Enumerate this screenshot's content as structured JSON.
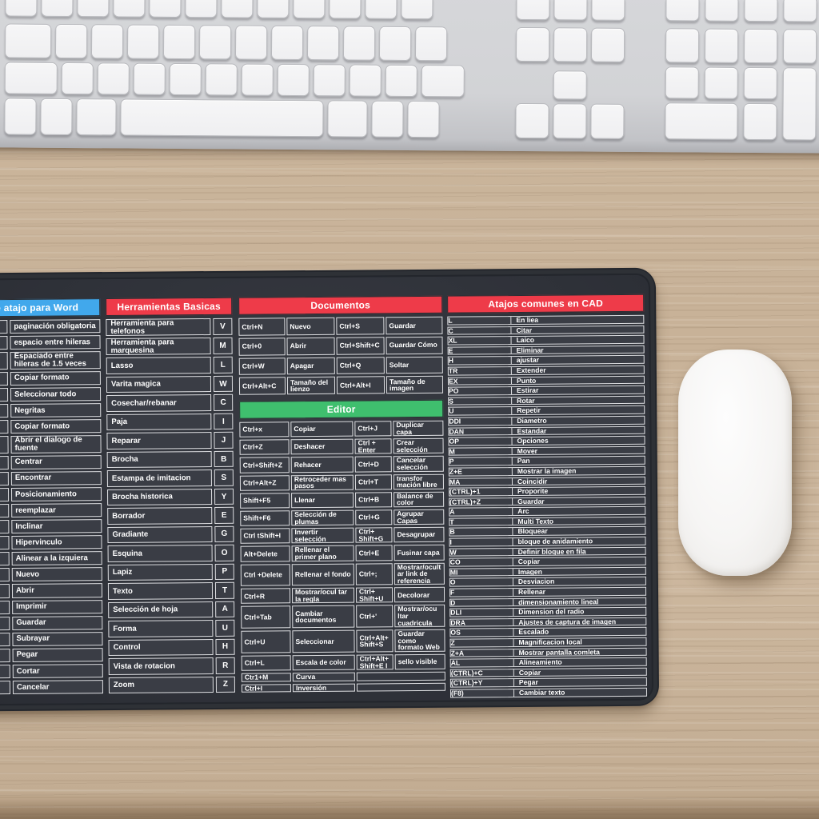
{
  "mousepad": {
    "colors": {
      "header_red": "#ee3b49",
      "header_blue": "#41a8ec",
      "header_green": "#3fbf6e",
      "pad_background": "#30333b",
      "cell_background": "#3a3d45",
      "cell_border": "#dcdde0",
      "text": "#ffffff"
    },
    "word_column": {
      "title": "e atajo para Word",
      "rows": [
        "paginación obligatoria",
        "espacio entre hileras",
        "Espaciado entre hileras de 1.5 veces",
        "Copiar formato",
        "Seleccionar todo",
        "Negritas",
        "Copiar formato",
        "Abrir el dialogo de fuente",
        "Centrar",
        "Encontrar",
        "Posicionamiento",
        "reemplazar",
        "Inclinar",
        "Hipervinculo",
        "Alinear a la izquiera",
        "Nuevo",
        "Abrir",
        "Imprimir",
        "Guardar",
        "Subrayar",
        "Pegar",
        "Cortar",
        "Cancelar"
      ]
    },
    "basic_tools": {
      "title": "Herramientas Basicas",
      "rows": [
        {
          "name": "Herramienta para telefonos",
          "key": "V"
        },
        {
          "name": "Herramienta para marquesina",
          "key": "M"
        },
        {
          "name": "Lasso",
          "key": "L"
        },
        {
          "name": "Varita magica",
          "key": "W"
        },
        {
          "name": "Cosechar/rebanar",
          "key": "C"
        },
        {
          "name": "Paja",
          "key": "I"
        },
        {
          "name": "Reparar",
          "key": "J"
        },
        {
          "name": "Brocha",
          "key": "B"
        },
        {
          "name": "Estampa de imitacion",
          "key": "S"
        },
        {
          "name": "Brocha historica",
          "key": "Y"
        },
        {
          "name": "Borrador",
          "key": "E"
        },
        {
          "name": "Gradiante",
          "key": "G"
        },
        {
          "name": "Esquina",
          "key": "O"
        },
        {
          "name": "Lapiz",
          "key": "P"
        },
        {
          "name": "Texto",
          "key": "T"
        },
        {
          "name": "Selección de hoja",
          "key": "A"
        },
        {
          "name": "Forma",
          "key": "U"
        },
        {
          "name": "Control",
          "key": "H"
        },
        {
          "name": "Vista de rotacion",
          "key": "R"
        },
        {
          "name": "Zoom",
          "key": "Z"
        }
      ]
    },
    "documents": {
      "title": "Documentos",
      "rows": [
        [
          "Ctrl+N",
          "Nuevo",
          "Ctrl+S",
          "Guardar"
        ],
        [
          "Ctrl+0",
          "Abrir",
          "Ctrl+Shift+C",
          "Guardar Cómo"
        ],
        [
          "Ctrl+W",
          "Apagar",
          "Ctrl+Q",
          "Soltar"
        ],
        [
          "Ctrl+Alt+C",
          "Tamaño del lienzo",
          "Ctrl+Alt+I",
          "Tamaño de imagen"
        ]
      ]
    },
    "editor": {
      "title": "Editor",
      "rows": [
        [
          "Ctrl+x",
          "Copiar",
          "Ctrl+J",
          "Duplicar capa"
        ],
        [
          "Ctrl+Z",
          "Deshacer",
          "Ctrl + Enter",
          "Crear selección"
        ],
        [
          "Ctrl+Shift+Z",
          "Rehacer",
          "Ctrl+D",
          "Cancelar selección"
        ],
        [
          "Ctrl+Alt+Z",
          "Retroceder mas pasos",
          "Ctrl+T",
          "transfor mación libre"
        ],
        [
          "Shift+F5",
          "Llenar",
          "Ctrl+B",
          "Balance de color"
        ],
        [
          "Shift+F6",
          "Selección de plumas",
          "Ctrl+G",
          "Agrupar Capas"
        ],
        [
          "Ctrl tShift+I",
          "Invertir selección",
          "Ctrl+ Shift+G",
          "Desagrupar"
        ],
        [
          "Alt+Delete",
          "Rellenar el primer plano",
          "Ctrl+E",
          "Fusinar capa"
        ],
        [
          "Ctrl +Delete",
          "Rellenar el fondo",
          "Ctrl+;",
          "Mostrar/ocultar link de referencia"
        ],
        [
          "Ctrl+R",
          "Mostrar/ocul tar la regla",
          "Ctrl+ Shift+U",
          "Decolorar"
        ],
        [
          "Ctrl+Tab",
          "Cambiar documentos",
          "Ctrl+'",
          "Mostrar/ocu ltar cuadricula"
        ],
        [
          "Ctrl+U",
          "Seleccionar",
          "Ctrl+Alt+ Shift+S",
          "Guardar como formato Web"
        ],
        [
          "Ctrl+L",
          "Escala de color",
          "Ctrl+Alt+ Shift+E I",
          "sello visible"
        ],
        [
          "Ctr1+M",
          "Curva",
          "",
          ""
        ],
        [
          "Ctrl+I",
          "Inversión",
          "",
          ""
        ]
      ]
    },
    "cad": {
      "title": "Atajos comunes en CAD",
      "rows": [
        [
          "L",
          "En liea"
        ],
        [
          "C",
          "Citar"
        ],
        [
          "XL",
          "Laico"
        ],
        [
          "E",
          "Eliminar"
        ],
        [
          "H",
          "ajustar"
        ],
        [
          "TR",
          "Extender"
        ],
        [
          "EX",
          "Punto"
        ],
        [
          "PO",
          "Estirar"
        ],
        [
          "S",
          "Rotar"
        ],
        [
          "U",
          "Repetir"
        ],
        [
          "DDI",
          "Diametro"
        ],
        [
          "DAN",
          "Estandar"
        ],
        [
          "OP",
          "Opciones"
        ],
        [
          "M",
          "Mover"
        ],
        [
          "P",
          "Pan"
        ],
        [
          "Z+E",
          "Mostrar la imagen"
        ],
        [
          "MA",
          "Coincidir"
        ],
        [
          "(CTRL)+1",
          "Proporite"
        ],
        [
          "(CTRL)+Z",
          "Guardar"
        ],
        [
          "A",
          "Arc"
        ],
        [
          "T",
          "Multi Texto"
        ],
        [
          "B",
          "Bloquear"
        ],
        [
          "I",
          "bloque de anidamiento"
        ],
        [
          "W",
          "Definir bloque en fila"
        ],
        [
          "CO",
          "Copiar"
        ],
        [
          "MI",
          "Imagen"
        ],
        [
          "O",
          "Desviacion"
        ],
        [
          "F",
          "Rellenar"
        ],
        [
          "D",
          "dimensionamiento lineal"
        ],
        [
          "DLI",
          "Dimension del radio"
        ],
        [
          "DRA",
          "Ajustes de captura de imagen"
        ],
        [
          "OS",
          "Escalado"
        ],
        [
          "Z",
          "Magnificacion local"
        ],
        [
          "Z+A",
          "Mostrar pantalla comleta"
        ],
        [
          "AL",
          "Alineamiento"
        ],
        [
          "(CTRL)+C",
          "Copiar"
        ],
        [
          "(CTRL)+Y",
          "Pegar"
        ],
        [
          "(F8)",
          "Cambiar texto"
        ]
      ]
    }
  }
}
